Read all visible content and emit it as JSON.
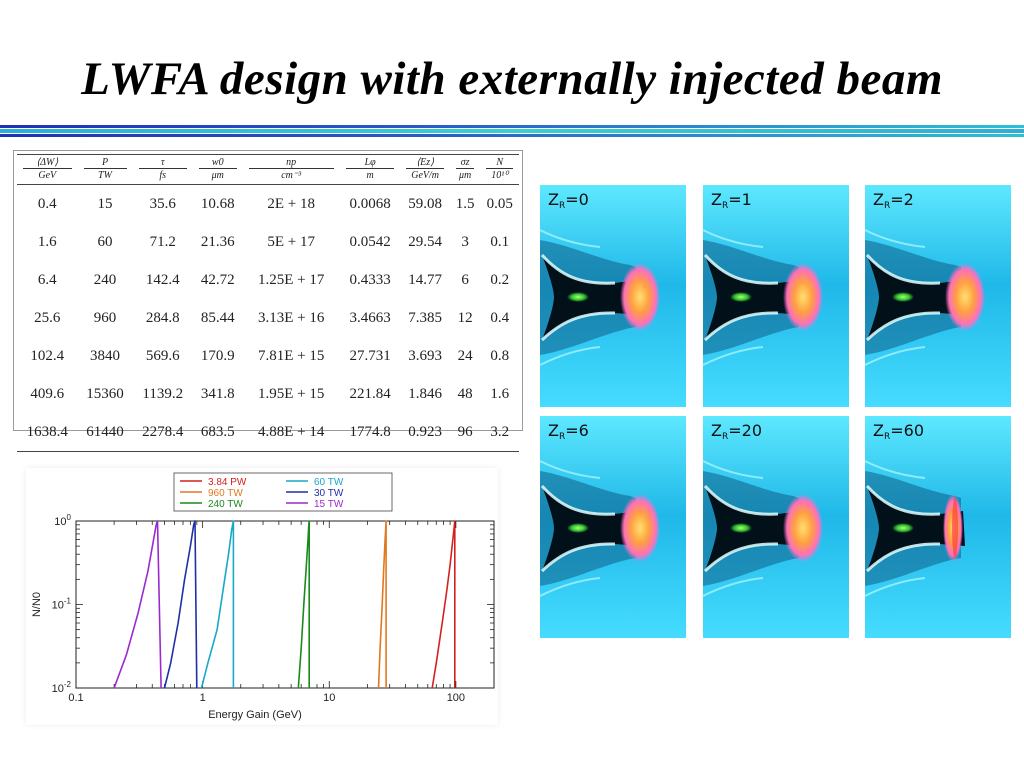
{
  "slide": {
    "title": "LWFA design with externally injected beam",
    "rule_colors": [
      "#1f2fb0",
      "#2ec4d0",
      "#1f2fb0"
    ]
  },
  "table": {
    "headers": [
      {
        "num": "⟨ΔW⟩",
        "den": "GeV"
      },
      {
        "num": "P",
        "den": "TW"
      },
      {
        "num": "τ",
        "den": "fs"
      },
      {
        "num": "w0",
        "den": "μm"
      },
      {
        "num": "np",
        "den": "cm⁻³"
      },
      {
        "num": "Lφ",
        "den": "m"
      },
      {
        "num": "⟨Ez⟩",
        "den": "GeV/m"
      },
      {
        "num": "σz",
        "den": "μm"
      },
      {
        "num": "N",
        "den": "10¹⁰"
      }
    ],
    "rows": [
      [
        "0.4",
        "15",
        "35.6",
        "10.68",
        "2E + 18",
        "0.0068",
        "59.08",
        "1.5",
        "0.05"
      ],
      [
        "1.6",
        "60",
        "71.2",
        "21.36",
        "5E + 17",
        "0.0542",
        "29.54",
        "3",
        "0.1"
      ],
      [
        "6.4",
        "240",
        "142.4",
        "42.72",
        "1.25E + 17",
        "0.4333",
        "14.77",
        "6",
        "0.2"
      ],
      [
        "25.6",
        "960",
        "284.8",
        "85.44",
        "3.13E + 16",
        "3.4663",
        "7.385",
        "12",
        "0.4"
      ],
      [
        "102.4",
        "3840",
        "569.6",
        "170.9",
        "7.81E + 15",
        "27.731",
        "3.693",
        "24",
        "0.8"
      ],
      [
        "409.6",
        "15360",
        "1139.2",
        "341.8",
        "1.95E + 15",
        "221.84",
        "1.846",
        "48",
        "1.6"
      ],
      [
        "1638.4",
        "61440",
        "2278.4",
        "683.5",
        "4.88E + 14",
        "1774.8",
        "0.923",
        "96",
        "3.2"
      ]
    ]
  },
  "chart_data": {
    "type": "line",
    "xlabel": "Energy Gain (GeV)",
    "ylabel": "N/N0",
    "x_scale": "log",
    "y_scale": "log",
    "xlim": [
      0.1,
      200
    ],
    "ylim": [
      0.01,
      1
    ],
    "x_ticks": [
      "0.1",
      "1",
      "10",
      "100"
    ],
    "y_ticks": [
      "10-2",
      "10-1",
      "100"
    ],
    "legend_position": "top",
    "series": [
      {
        "name": "3.84 PW",
        "color": "#d42020",
        "x": [
          65,
          70,
          78,
          85,
          90,
          94,
          97,
          98,
          98,
          98
        ],
        "y": [
          0.01,
          0.02,
          0.06,
          0.15,
          0.3,
          0.55,
          0.85,
          1.0,
          0.1,
          0.01
        ]
      },
      {
        "name": "960 TW",
        "color": "#e07820",
        "x": [
          24.5,
          25.2,
          26.2,
          27.0,
          27.6,
          28.0,
          28.1,
          28.1
        ],
        "y": [
          0.01,
          0.03,
          0.1,
          0.3,
          0.6,
          0.9,
          1.0,
          0.01
        ]
      },
      {
        "name": "240 TW",
        "color": "#1a8a1a",
        "x": [
          5.7,
          6.0,
          6.3,
          6.6,
          6.8,
          6.9,
          6.95,
          6.95
        ],
        "y": [
          0.01,
          0.03,
          0.1,
          0.3,
          0.6,
          0.9,
          1.0,
          0.01
        ]
      },
      {
        "name": "60 TW",
        "color": "#18a8c8",
        "x": [
          0.98,
          1.1,
          1.3,
          1.45,
          1.6,
          1.7,
          1.75,
          1.75
        ],
        "y": [
          0.01,
          0.02,
          0.05,
          0.15,
          0.4,
          0.8,
          1.0,
          0.01
        ]
      },
      {
        "name": "30 TW",
        "color": "#1f2fa8",
        "x": [
          0.5,
          0.56,
          0.64,
          0.72,
          0.8,
          0.85,
          0.87,
          0.9
        ],
        "y": [
          0.01,
          0.02,
          0.06,
          0.2,
          0.5,
          0.9,
          1.0,
          0.01
        ]
      },
      {
        "name": "15 TW",
        "color": "#9a2ad0",
        "x": [
          0.2,
          0.25,
          0.31,
          0.37,
          0.41,
          0.43,
          0.44,
          0.47
        ],
        "y": [
          0.01,
          0.025,
          0.08,
          0.25,
          0.6,
          0.9,
          1.0,
          0.01
        ]
      }
    ]
  },
  "panels": [
    {
      "label_main": "Z",
      "label_sub": "R",
      "label_value": "=0"
    },
    {
      "label_main": "Z",
      "label_sub": "R",
      "label_value": "=1"
    },
    {
      "label_main": "Z",
      "label_sub": "R",
      "label_value": "=2"
    },
    {
      "label_main": "Z",
      "label_sub": "R",
      "label_value": "=6"
    },
    {
      "label_main": "Z",
      "label_sub": "R",
      "label_value": "=20"
    },
    {
      "label_main": "Z",
      "label_sub": "R",
      "label_value": "=60"
    }
  ]
}
